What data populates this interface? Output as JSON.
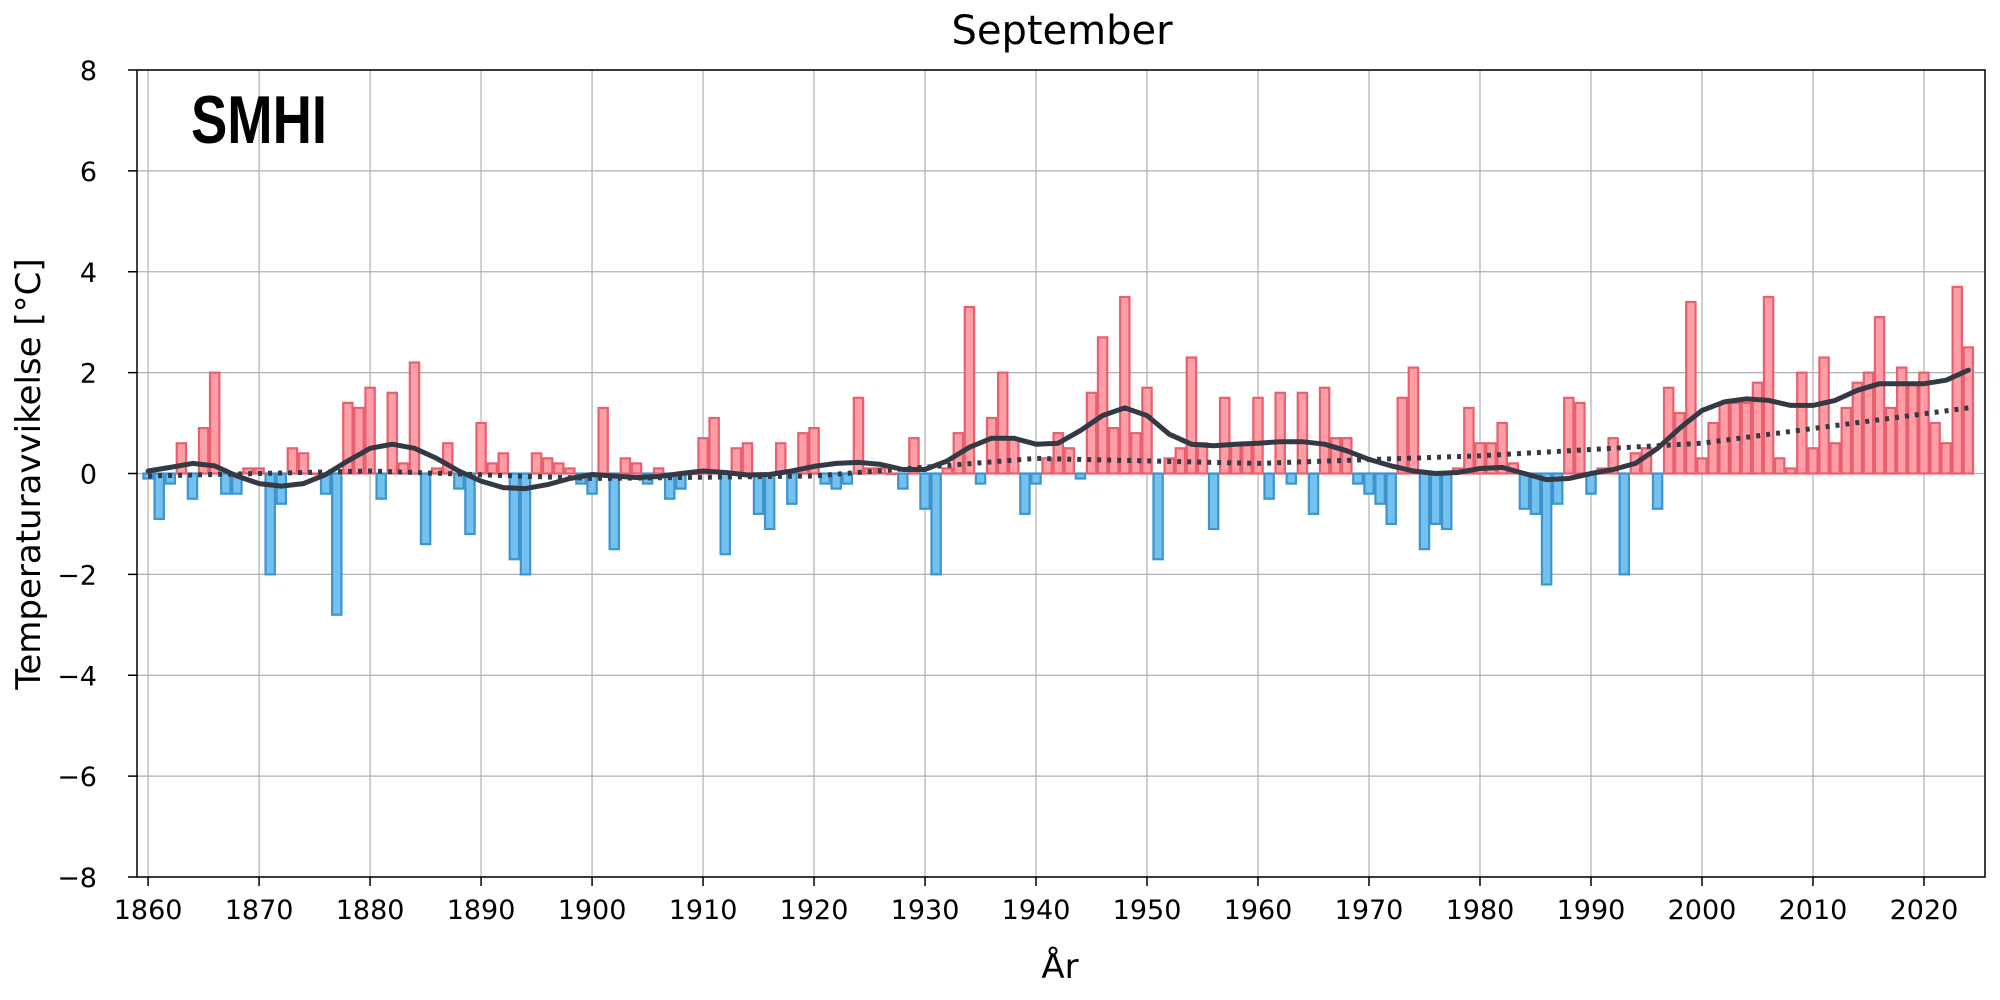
{
  "logo": {
    "text": "SMHI"
  },
  "chart_data": {
    "type": "bar",
    "title": "September",
    "xlabel": "År",
    "ylabel": "Temperaturavvikelse [°C]",
    "xlim": [
      1859,
      2025.5
    ],
    "ylim": [
      -8,
      8
    ],
    "x_ticks": [
      1860,
      1870,
      1880,
      1890,
      1900,
      1910,
      1920,
      1930,
      1940,
      1950,
      1960,
      1970,
      1980,
      1990,
      2000,
      2010,
      2020
    ],
    "y_ticks": [
      8,
      6,
      4,
      2,
      0,
      -2,
      -4,
      -6,
      -8
    ],
    "y_tick_labels": [
      "8",
      "6",
      "4",
      "2",
      "0",
      "−2",
      "−4",
      "−6",
      "−8"
    ],
    "grid": true,
    "colors": {
      "positive_fill": "#ff9ea6",
      "positive_edge": "#e8606e",
      "negative_fill": "#74c0ee",
      "negative_edge": "#3d95d0",
      "line": "#333a44"
    },
    "years_start": 1860,
    "values": [
      -0.1,
      -0.9,
      -0.2,
      0.6,
      -0.5,
      0.9,
      2.0,
      -0.4,
      -0.4,
      0.1,
      0.1,
      -2.0,
      -0.6,
      0.5,
      0.4,
      0.0,
      -0.4,
      -2.8,
      1.4,
      1.3,
      1.7,
      -0.5,
      1.6,
      0.2,
      2.2,
      -1.4,
      0.1,
      0.6,
      -0.3,
      -1.2,
      1.0,
      0.2,
      0.4,
      -1.7,
      -2.0,
      0.4,
      0.3,
      0.2,
      0.1,
      -0.2,
      -0.4,
      1.3,
      -1.5,
      0.3,
      0.2,
      -0.2,
      0.1,
      -0.5,
      -0.3,
      0.0,
      0.7,
      1.1,
      -1.6,
      0.5,
      0.6,
      -0.8,
      -1.1,
      0.6,
      -0.6,
      0.8,
      0.9,
      -0.2,
      -0.3,
      -0.2,
      1.5,
      0.1,
      0.1,
      0.0,
      -0.3,
      0.7,
      -0.7,
      -2.0,
      0.1,
      0.8,
      3.3,
      -0.2,
      1.1,
      2.0,
      0.7,
      -0.8,
      -0.2,
      0.3,
      0.8,
      0.5,
      -0.1,
      1.6,
      2.7,
      0.9,
      3.5,
      0.8,
      1.7,
      -1.7,
      0.3,
      0.5,
      2.3,
      0.6,
      -1.1,
      1.5,
      0.6,
      0.6,
      1.5,
      -0.5,
      1.6,
      -0.2,
      1.6,
      -0.8,
      1.7,
      0.7,
      0.7,
      -0.2,
      -0.4,
      -0.6,
      -1.0,
      1.5,
      2.1,
      -1.5,
      -1.0,
      -1.1,
      0.1,
      1.3,
      0.6,
      0.6,
      1.0,
      0.2,
      -0.7,
      -0.8,
      -2.2,
      -0.6,
      1.5,
      1.4,
      -0.4,
      0.1,
      0.7,
      -2.0,
      0.4,
      0.5,
      -0.7,
      1.7,
      1.2,
      3.4,
      0.3,
      1.0,
      1.4,
      1.4,
      1.4,
      1.8,
      3.5,
      0.3,
      0.1,
      2.0,
      0.5,
      2.3,
      0.6,
      1.3,
      1.8,
      2.0,
      3.1,
      1.3,
      2.1,
      1.8,
      2.0,
      1.0,
      0.6,
      3.7,
      2.5
    ],
    "smoothed_curve": {
      "x": [
        1860,
        1862,
        1864,
        1866,
        1868,
        1870,
        1872,
        1874,
        1876,
        1878,
        1880,
        1882,
        1884,
        1886,
        1888,
        1890,
        1892,
        1894,
        1896,
        1898,
        1900,
        1902,
        1904,
        1906,
        1908,
        1910,
        1912,
        1914,
        1916,
        1918,
        1920,
        1922,
        1924,
        1926,
        1928,
        1930,
        1932,
        1934,
        1936,
        1938,
        1940,
        1942,
        1944,
        1946,
        1948,
        1950,
        1952,
        1954,
        1956,
        1958,
        1960,
        1962,
        1964,
        1966,
        1968,
        1970,
        1972,
        1974,
        1976,
        1978,
        1980,
        1982,
        1984,
        1986,
        1988,
        1990,
        1992,
        1994,
        1996,
        1998,
        2000,
        2002,
        2004,
        2006,
        2008,
        2010,
        2012,
        2014,
        2016,
        2018,
        2020,
        2022,
        2024
      ],
      "y": [
        0.05,
        0.12,
        0.2,
        0.15,
        -0.05,
        -0.2,
        -0.25,
        -0.2,
        -0.02,
        0.25,
        0.5,
        0.58,
        0.5,
        0.3,
        0.05,
        -0.15,
        -0.28,
        -0.3,
        -0.22,
        -0.1,
        -0.02,
        -0.05,
        -0.08,
        -0.06,
        0.0,
        0.05,
        0.02,
        -0.03,
        -0.02,
        0.05,
        0.14,
        0.2,
        0.22,
        0.18,
        0.08,
        0.08,
        0.25,
        0.52,
        0.7,
        0.7,
        0.58,
        0.6,
        0.85,
        1.15,
        1.3,
        1.15,
        0.78,
        0.58,
        0.55,
        0.58,
        0.6,
        0.63,
        0.63,
        0.58,
        0.45,
        0.28,
        0.15,
        0.05,
        0.0,
        0.02,
        0.1,
        0.12,
        0.0,
        -0.12,
        -0.1,
        0.0,
        0.08,
        0.2,
        0.5,
        0.9,
        1.25,
        1.42,
        1.48,
        1.45,
        1.35,
        1.35,
        1.45,
        1.65,
        1.78,
        1.78,
        1.78,
        1.85,
        2.05
      ]
    },
    "trend_line": {
      "x": [
        1860,
        1880,
        1900,
        1920,
        1940,
        1960,
        1980,
        2000,
        2024
      ],
      "y": [
        -0.05,
        0.05,
        -0.1,
        -0.05,
        0.3,
        0.2,
        0.35,
        0.6,
        1.3
      ]
    }
  }
}
